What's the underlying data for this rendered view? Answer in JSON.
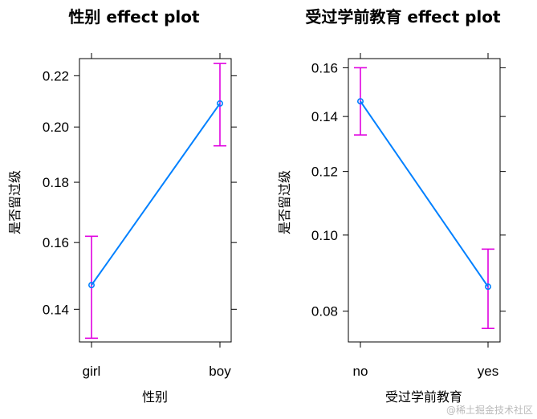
{
  "chart_data": [
    {
      "type": "line",
      "title": "性别 effect plot",
      "xlabel": "性别",
      "ylabel": "是否留过级",
      "y_scale": "logit",
      "ylim": [
        0.131,
        0.227
      ],
      "yticks": [
        "0.14",
        "0.16",
        "0.18",
        "0.20",
        "0.22"
      ],
      "categories": [
        "girl",
        "boy"
      ],
      "values": [
        0.147,
        0.209
      ],
      "lower": [
        0.132,
        0.193
      ],
      "upper": [
        0.162,
        0.225
      ],
      "colors": {
        "line": "#0080ff",
        "ci": "#e000e0"
      }
    },
    {
      "type": "line",
      "title": "受过学前教育 effect plot",
      "xlabel": "受过学前教育",
      "ylabel": "是否留过级",
      "y_scale": "logit",
      "ylim": [
        0.073,
        0.164
      ],
      "yticks": [
        "0.08",
        "0.10",
        "0.12",
        "0.14",
        "0.16"
      ],
      "categories": [
        "no",
        "yes"
      ],
      "values": [
        0.146,
        0.086
      ],
      "lower": [
        0.133,
        0.076
      ],
      "upper": [
        0.16,
        0.096
      ],
      "colors": {
        "line": "#0080ff",
        "ci": "#e000e0"
      }
    }
  ],
  "watermark": "@稀土掘金技术社区"
}
